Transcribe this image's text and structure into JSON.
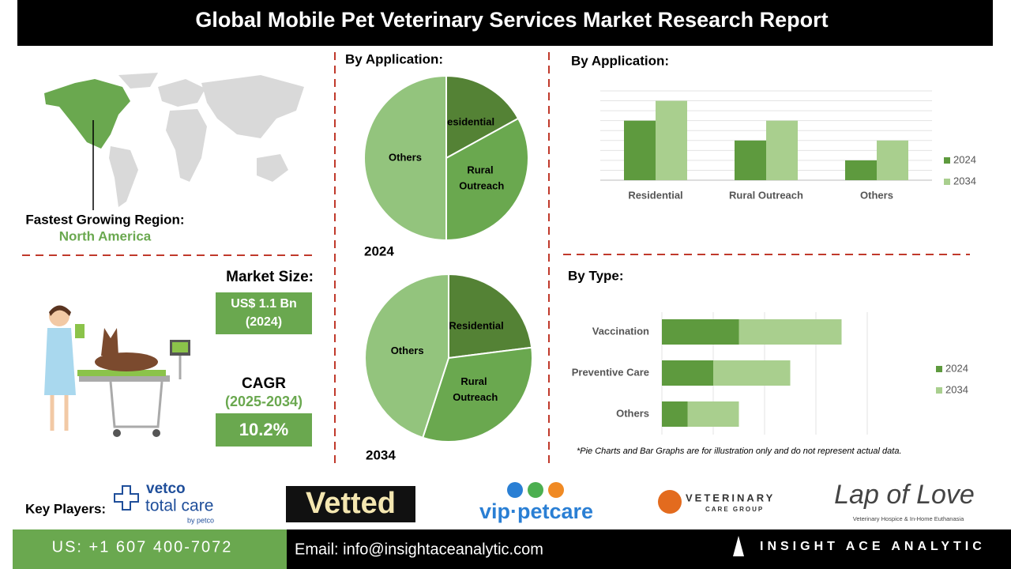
{
  "header": {
    "title": "Global Mobile Pet Veterinary Services Market Research Report"
  },
  "region": {
    "label": "Fastest Growing Region:",
    "value": "North America"
  },
  "market_size": {
    "label": "Market Size:",
    "value": "US$ 1.1 Bn",
    "year": "(2024)"
  },
  "cagr": {
    "label": "CAGR",
    "period": "(2025-2034)",
    "value": "10.2%"
  },
  "chart_data": [
    {
      "type": "pie",
      "title": "By Application:",
      "label": "2024",
      "categories": [
        "Residential",
        "Rural Outreach",
        "Others"
      ],
      "values": [
        17,
        33,
        50
      ],
      "colors": [
        "#548235",
        "#6aa84f",
        "#93c47d"
      ]
    },
    {
      "type": "pie",
      "label": "2034",
      "categories": [
        "Residential",
        "Rural Outreach",
        "Others"
      ],
      "values": [
        23,
        32,
        45
      ],
      "colors": [
        "#548235",
        "#6aa84f",
        "#93c47d"
      ]
    },
    {
      "type": "bar",
      "title": "By Application:",
      "categories": [
        "Residential",
        "Rural Outreach",
        "Others"
      ],
      "series": [
        {
          "name": "2024",
          "color": "#5e9a3e",
          "values": [
            6,
            4,
            2
          ]
        },
        {
          "name": "2034",
          "color": "#a9cf8e",
          "values": [
            8,
            6,
            4
          ]
        }
      ],
      "ylim": [
        0,
        9
      ],
      "yticks": [
        0,
        1,
        2,
        3,
        4,
        5,
        6,
        7,
        8,
        9
      ],
      "grid": true,
      "legend": "right"
    },
    {
      "type": "stacked-barh",
      "title": "By Type:",
      "categories": [
        "Vaccination",
        "Preventive Care",
        "Others"
      ],
      "series": [
        {
          "name": "2024",
          "color": "#5e9a3e",
          "values": [
            1.5,
            1,
            0.5
          ]
        },
        {
          "name": "2034",
          "color": "#a9cf8e",
          "values": [
            2,
            1.5,
            1
          ]
        }
      ],
      "xlim": [
        0,
        4
      ],
      "xticks": [
        0,
        1,
        2,
        3,
        4
      ],
      "grid": true,
      "legend": "right"
    }
  ],
  "note": "*Pie Charts and Bar Graphs are for illustration only and do not represent actual data.",
  "key_players": {
    "label": "Key Players:",
    "logos": [
      {
        "name": "vetco",
        "line2": "total care",
        "line3": "by petco"
      },
      {
        "name": "Vetted"
      },
      {
        "name": "vip·petcare"
      },
      {
        "name": "VETERINARY",
        "line2": "CARE GROUP"
      },
      {
        "name": "Lap of Love",
        "line2": "Veterinary Hospice & In-Home Euthanasia"
      }
    ]
  },
  "footer": {
    "phone": "US: +1 607 400-7072",
    "email": "Email: info@insightaceanalytic.com",
    "brand": "INSIGHT ACE ANALYTIC"
  }
}
